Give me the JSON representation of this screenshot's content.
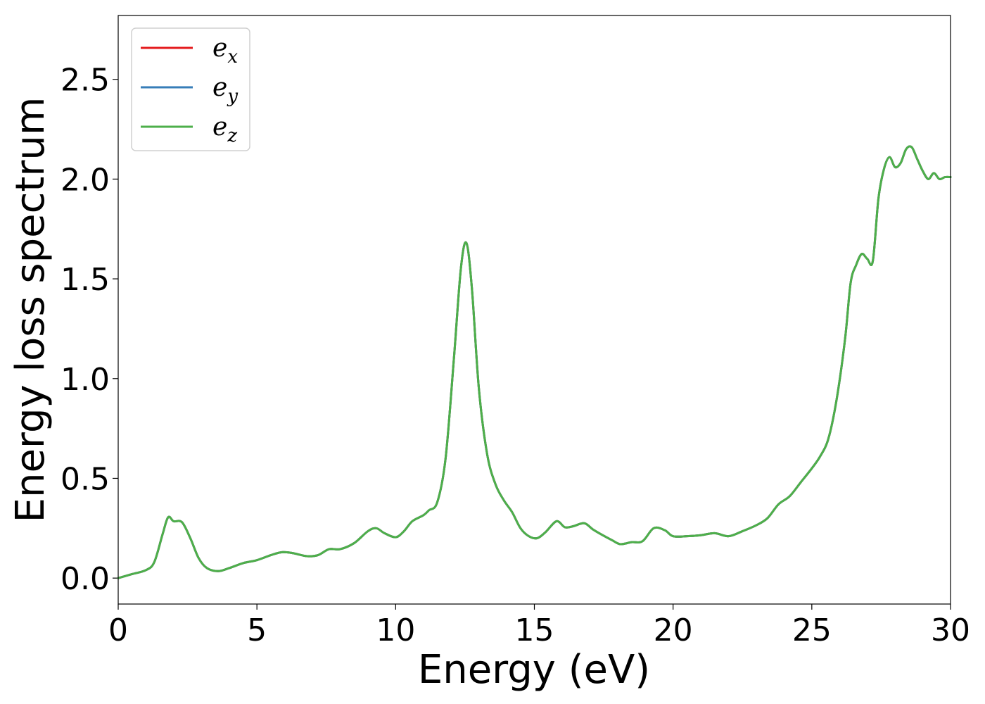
{
  "chart_data": {
    "type": "line",
    "title": "",
    "xlabel": "Energy (eV)",
    "ylabel": "Energy loss spectrum",
    "xlim": [
      0,
      30
    ],
    "ylim": [
      -0.13,
      2.82
    ],
    "xticks": [
      "0",
      "5",
      "10",
      "15",
      "20",
      "25",
      "30"
    ],
    "yticks": [
      "0.0",
      "0.5",
      "1.0",
      "1.5",
      "2.0",
      "2.5"
    ],
    "grid": false,
    "legend_position": "top-left",
    "x": [
      0,
      0.5,
      1.0,
      1.3,
      1.6,
      1.8,
      2.0,
      2.3,
      2.6,
      2.9,
      3.2,
      3.6,
      4.0,
      4.5,
      5.0,
      5.5,
      5.9,
      6.3,
      6.8,
      7.2,
      7.6,
      8.0,
      8.5,
      9.0,
      9.3,
      9.6,
      10.0,
      10.3,
      10.6,
      11.0,
      11.2,
      11.5,
      11.8,
      12.1,
      12.35,
      12.55,
      12.75,
      13.0,
      13.3,
      13.6,
      13.9,
      14.2,
      14.5,
      14.8,
      15.1,
      15.4,
      15.8,
      16.1,
      16.4,
      16.8,
      17.1,
      17.4,
      17.8,
      18.1,
      18.5,
      18.9,
      19.3,
      19.7,
      20.0,
      20.5,
      21.0,
      21.5,
      22.0,
      22.5,
      23.0,
      23.4,
      23.8,
      24.2,
      24.6,
      25.0,
      25.3,
      25.6,
      25.9,
      26.2,
      26.4,
      26.6,
      26.8,
      27.0,
      27.2,
      27.4,
      27.6,
      27.8,
      28.0,
      28.2,
      28.4,
      28.6,
      28.8,
      29.0,
      29.2,
      29.4,
      29.6,
      29.8,
      30.0
    ],
    "series": [
      {
        "name": "e_x",
        "color": "#e41a1c",
        "values": [
          0.0,
          0.02,
          0.04,
          0.08,
          0.22,
          0.305,
          0.285,
          0.28,
          0.2,
          0.1,
          0.05,
          0.035,
          0.05,
          0.075,
          0.09,
          0.115,
          0.13,
          0.125,
          0.11,
          0.115,
          0.145,
          0.145,
          0.175,
          0.235,
          0.25,
          0.225,
          0.205,
          0.235,
          0.285,
          0.315,
          0.34,
          0.38,
          0.6,
          1.1,
          1.55,
          1.68,
          1.45,
          0.95,
          0.62,
          0.47,
          0.39,
          0.33,
          0.25,
          0.21,
          0.2,
          0.23,
          0.285,
          0.255,
          0.26,
          0.275,
          0.245,
          0.22,
          0.19,
          0.17,
          0.18,
          0.185,
          0.25,
          0.24,
          0.21,
          0.21,
          0.215,
          0.225,
          0.21,
          0.235,
          0.265,
          0.3,
          0.37,
          0.41,
          0.48,
          0.55,
          0.61,
          0.7,
          0.9,
          1.2,
          1.48,
          1.57,
          1.625,
          1.6,
          1.59,
          1.9,
          2.05,
          2.11,
          2.06,
          2.08,
          2.15,
          2.16,
          2.1,
          2.04,
          2.0,
          2.03,
          2.0,
          2.01,
          2.01
        ]
      },
      {
        "name": "e_y",
        "color": "#377eb8",
        "values": [
          0.0,
          0.02,
          0.04,
          0.08,
          0.22,
          0.305,
          0.285,
          0.28,
          0.2,
          0.1,
          0.05,
          0.035,
          0.05,
          0.075,
          0.09,
          0.115,
          0.13,
          0.125,
          0.11,
          0.115,
          0.145,
          0.145,
          0.175,
          0.235,
          0.25,
          0.225,
          0.205,
          0.235,
          0.285,
          0.315,
          0.34,
          0.38,
          0.6,
          1.1,
          1.55,
          1.68,
          1.45,
          0.95,
          0.62,
          0.47,
          0.39,
          0.33,
          0.25,
          0.21,
          0.2,
          0.23,
          0.285,
          0.255,
          0.26,
          0.275,
          0.245,
          0.22,
          0.19,
          0.17,
          0.18,
          0.185,
          0.25,
          0.24,
          0.21,
          0.21,
          0.215,
          0.225,
          0.21,
          0.235,
          0.265,
          0.3,
          0.37,
          0.41,
          0.48,
          0.55,
          0.61,
          0.7,
          0.9,
          1.2,
          1.48,
          1.57,
          1.625,
          1.6,
          1.59,
          1.9,
          2.05,
          2.11,
          2.06,
          2.08,
          2.15,
          2.16,
          2.1,
          2.04,
          2.0,
          2.03,
          2.0,
          2.01,
          2.01
        ]
      },
      {
        "name": "e_z",
        "color": "#4daf4a",
        "values": [
          0.0,
          0.02,
          0.04,
          0.08,
          0.22,
          0.305,
          0.285,
          0.28,
          0.2,
          0.1,
          0.05,
          0.035,
          0.05,
          0.075,
          0.09,
          0.115,
          0.13,
          0.125,
          0.11,
          0.115,
          0.145,
          0.145,
          0.175,
          0.235,
          0.25,
          0.225,
          0.205,
          0.235,
          0.285,
          0.315,
          0.34,
          0.38,
          0.6,
          1.1,
          1.55,
          1.68,
          1.45,
          0.95,
          0.62,
          0.47,
          0.39,
          0.33,
          0.25,
          0.21,
          0.2,
          0.23,
          0.285,
          0.255,
          0.26,
          0.275,
          0.245,
          0.22,
          0.19,
          0.17,
          0.18,
          0.185,
          0.25,
          0.24,
          0.21,
          0.21,
          0.215,
          0.225,
          0.21,
          0.235,
          0.265,
          0.3,
          0.37,
          0.41,
          0.48,
          0.55,
          0.61,
          0.7,
          0.9,
          1.2,
          1.48,
          1.57,
          1.625,
          1.6,
          1.59,
          1.9,
          2.05,
          2.11,
          2.06,
          2.08,
          2.15,
          2.16,
          2.1,
          2.04,
          2.0,
          2.03,
          2.0,
          2.01,
          2.01
        ]
      }
    ],
    "legend": [
      {
        "base": "e",
        "sub": "x",
        "color": "#e41a1c"
      },
      {
        "base": "e",
        "sub": "y",
        "color": "#377eb8"
      },
      {
        "base": "e",
        "sub": "z",
        "color": "#4daf4a"
      }
    ]
  }
}
